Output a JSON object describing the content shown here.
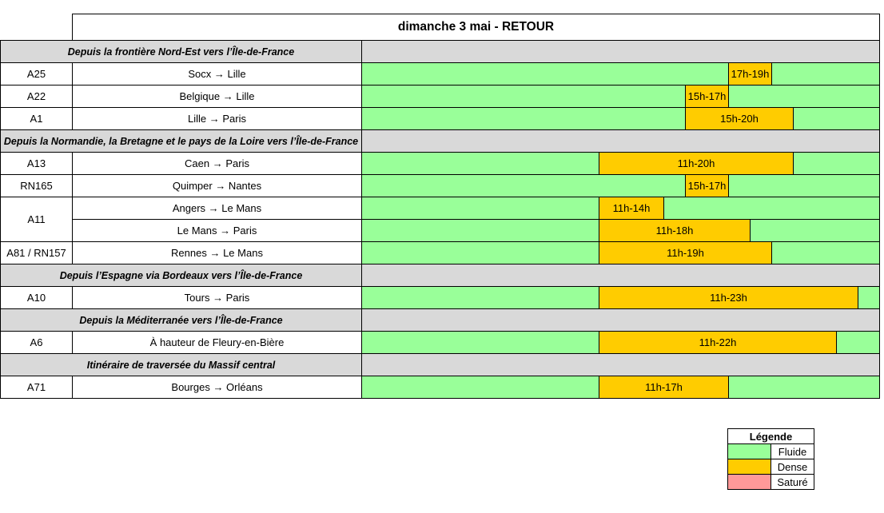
{
  "title": "dimanche 3 mai  - RETOUR",
  "sections": [
    {
      "title": "Depuis la frontière Nord-Est vers l’Île-de-France",
      "rows": [
        {
          "code": "A25",
          "routes": [
            {
              "route": "Socx → Lille",
              "dense": "17h-19h"
            }
          ]
        },
        {
          "code": "A22",
          "routes": [
            {
              "route": "Belgique → Lille",
              "dense": "15h-17h"
            }
          ]
        },
        {
          "code": "A1",
          "routes": [
            {
              "route": "Lille → Paris",
              "dense": "15h-20h"
            }
          ]
        }
      ]
    },
    {
      "title": "Depuis la Normandie, la Bretagne et le pays de la Loire vers l’Île-de-France",
      "rows": [
        {
          "code": "A13",
          "routes": [
            {
              "route": "Caen → Paris",
              "dense": "11h-20h"
            }
          ]
        },
        {
          "code": "RN165",
          "routes": [
            {
              "route": "Quimper → Nantes",
              "dense": "15h-17h"
            }
          ]
        },
        {
          "code": "A11",
          "routes": [
            {
              "route": "Angers → Le Mans",
              "dense": "11h-14h"
            },
            {
              "route": "Le Mans → Paris",
              "dense": "11h-18h"
            }
          ]
        },
        {
          "code": "A81 / RN157",
          "routes": [
            {
              "route": "Rennes → Le Mans",
              "dense": "11h-19h"
            }
          ]
        }
      ]
    },
    {
      "title": "Depuis l’Espagne via Bordeaux vers l’Île-de-France",
      "rows": [
        {
          "code": "A10",
          "routes": [
            {
              "route": "Tours → Paris",
              "dense": "11h-23h"
            }
          ]
        }
      ]
    },
    {
      "title": "Depuis la Méditerranée vers l’Île-de-France",
      "rows": [
        {
          "code": "A6",
          "routes": [
            {
              "route": "À hauteur de Fleury-en-Bière",
              "dense": "11h-22h"
            }
          ]
        }
      ]
    },
    {
      "title": "Itinéraire de traversée du Massif central",
      "rows": [
        {
          "code": "A71",
          "routes": [
            {
              "route": "Bourges → Orléans",
              "dense": "11h-17h"
            }
          ]
        }
      ]
    }
  ],
  "legend": {
    "title": "Légende",
    "items": [
      {
        "label": "Fluide",
        "color": "#99ff99"
      },
      {
        "label": "Dense",
        "color": "#ffcc00"
      },
      {
        "label": "Saturé",
        "color": "#ff9999"
      }
    ]
  }
}
